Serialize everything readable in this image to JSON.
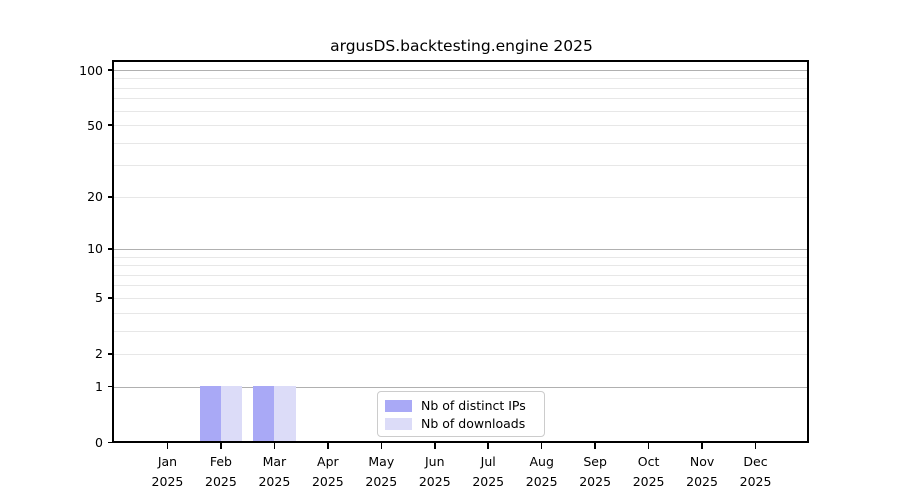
{
  "chart_data": {
    "type": "bar",
    "title": "argusDS.backtesting.engine 2025",
    "categories": [
      "Jan",
      "Feb",
      "Mar",
      "Apr",
      "May",
      "Jun",
      "Jul",
      "Aug",
      "Sep",
      "Oct",
      "Nov",
      "Dec"
    ],
    "year_label": "2025",
    "series": [
      {
        "name": "Nb of distinct IPs",
        "color": "#a9a9f6",
        "values": [
          0,
          1,
          1,
          0,
          0,
          0,
          0,
          0,
          0,
          0,
          0,
          0
        ]
      },
      {
        "name": "Nb of downloads",
        "color": "#dcdcf8",
        "values": [
          0,
          1,
          1,
          0,
          0,
          0,
          0,
          0,
          0,
          0,
          0,
          0
        ]
      }
    ],
    "yscale": "log1p",
    "ylim": [
      0,
      110
    ],
    "yticks": [
      0,
      1,
      2,
      5,
      10,
      20,
      50,
      100
    ],
    "major_gridlines": [
      1,
      10,
      100
    ],
    "minor_gridlines": [
      2,
      3,
      4,
      5,
      6,
      7,
      8,
      9,
      20,
      30,
      40,
      50,
      60,
      70,
      80,
      90
    ],
    "grid": true,
    "legend_position": "lower center"
  },
  "colors": {
    "bar_distinct_ips": "#a9a9f6",
    "bar_downloads": "#dcdcf8",
    "major_grid": "#b0b0b0",
    "minor_grid": "#e7e7e7",
    "spine": "#000000",
    "legend_border": "#cccccc",
    "background": "#ffffff"
  }
}
